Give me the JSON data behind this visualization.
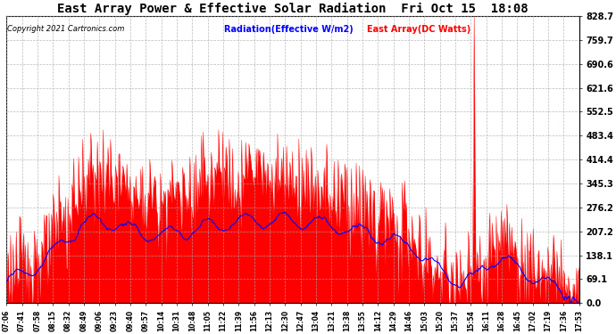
{
  "title": "East Array Power & Effective Solar Radiation  Fri Oct 15  18:08",
  "copyright": "Copyright 2021 Cartronics.com",
  "legend_radiation": "Radiation(Effective W/m2)",
  "legend_array": "East Array(DC Watts)",
  "ylabel_right_ticks": [
    0.0,
    69.1,
    138.1,
    207.2,
    276.2,
    345.3,
    414.4,
    483.4,
    552.5,
    621.6,
    690.6,
    759.7,
    828.7
  ],
  "ylim": [
    0.0,
    828.7
  ],
  "background_color": "#ffffff",
  "grid_color": "#aaaaaa",
  "radiation_color": "#0000ff",
  "array_color_fill": "#ff0000",
  "array_color_line": "#ff0000",
  "title_color": "#000000",
  "copyright_color": "#000000",
  "x_tick_labels": [
    "07:06",
    "07:41",
    "07:58",
    "08:15",
    "08:32",
    "08:49",
    "09:06",
    "09:23",
    "09:40",
    "09:57",
    "10:14",
    "10:31",
    "10:48",
    "11:05",
    "11:22",
    "11:39",
    "11:56",
    "12:13",
    "12:30",
    "12:47",
    "13:04",
    "13:21",
    "13:38",
    "13:55",
    "14:12",
    "14:29",
    "14:46",
    "15:03",
    "15:20",
    "15:37",
    "15:54",
    "16:11",
    "16:28",
    "16:45",
    "17:02",
    "17:19",
    "17:36",
    "17:53"
  ]
}
